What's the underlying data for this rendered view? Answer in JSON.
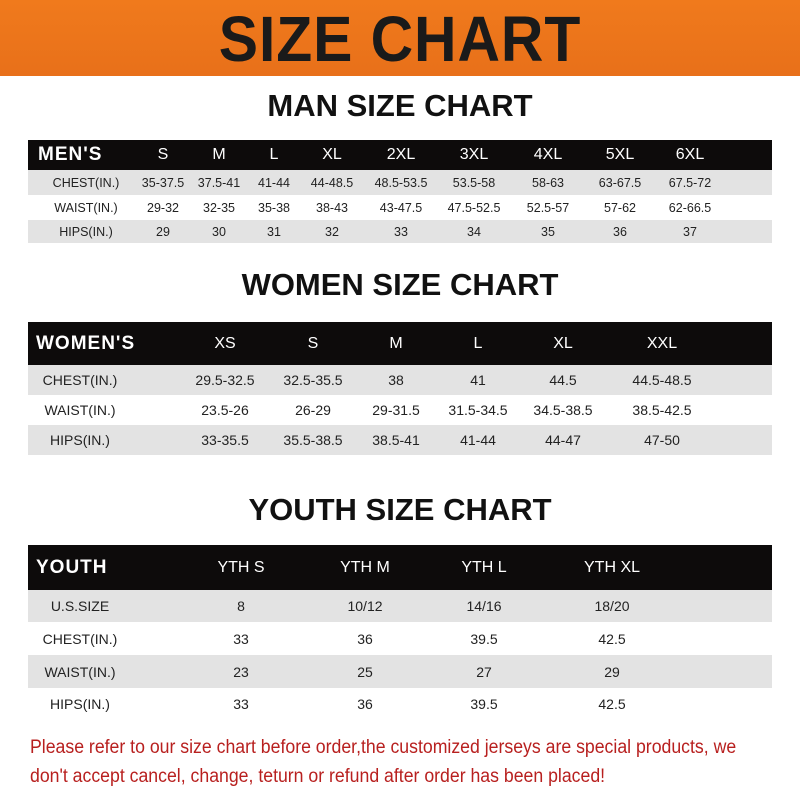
{
  "title": "SIZE CHART",
  "tables": [
    {
      "heading": "MAN SIZE CHART",
      "header": [
        "MEN'S",
        "S",
        "M",
        "L",
        "XL",
        "2XL",
        "3XL",
        "4XL",
        "5XL",
        "6XL"
      ],
      "rows": [
        [
          "CHEST(IN.)",
          "35-37.5",
          "37.5-41",
          "41-44",
          "44-48.5",
          "48.5-53.5",
          "53.5-58",
          "58-63",
          "63-67.5",
          "67.5-72"
        ],
        [
          "WAIST(IN.)",
          "29-32",
          "32-35",
          "35-38",
          "38-43",
          "43-47.5",
          "47.5-52.5",
          "52.5-57",
          "57-62",
          "62-66.5"
        ],
        [
          "HIPS(IN.)",
          "29",
          "30",
          "31",
          "32",
          "33",
          "34",
          "35",
          "36",
          "37"
        ]
      ]
    },
    {
      "heading": "WOMEN SIZE CHART",
      "header": [
        "WOMEN'S",
        "XS",
        "S",
        "M",
        "L",
        "XL",
        "XXL"
      ],
      "rows": [
        [
          "CHEST(IN.)",
          "29.5-32.5",
          "32.5-35.5",
          "38",
          "41",
          "44.5",
          "44.5-48.5"
        ],
        [
          "WAIST(IN.)",
          "23.5-26",
          "26-29",
          "29-31.5",
          "31.5-34.5",
          "34.5-38.5",
          "38.5-42.5"
        ],
        [
          "HIPS(IN.)",
          "33-35.5",
          "35.5-38.5",
          "38.5-41",
          "41-44",
          "44-47",
          "47-50"
        ]
      ]
    },
    {
      "heading": "YOUTH SIZE CHART",
      "header": [
        "YOUTH",
        "YTH S",
        "YTH M",
        "YTH L",
        "YTH XL"
      ],
      "rows": [
        [
          "U.S.SIZE",
          "8",
          "10/12",
          "14/16",
          "18/20"
        ],
        [
          "CHEST(IN.)",
          "33",
          "36",
          "39.5",
          "42.5"
        ],
        [
          "WAIST(IN.)",
          "23",
          "25",
          "27",
          "29"
        ],
        [
          "HIPS(IN.)",
          "33",
          "36",
          "39.5",
          "42.5"
        ]
      ]
    }
  ],
  "footer": "Please refer to our size chart before order,the customized jerseys are special products, we don't accept cancel, change, teturn or refund after order has been placed!",
  "colors": {
    "banner": "#f07a1c",
    "header_row": "#0d0b0b",
    "stripe": "#e3e3e3",
    "footer_text": "#b8201f"
  }
}
